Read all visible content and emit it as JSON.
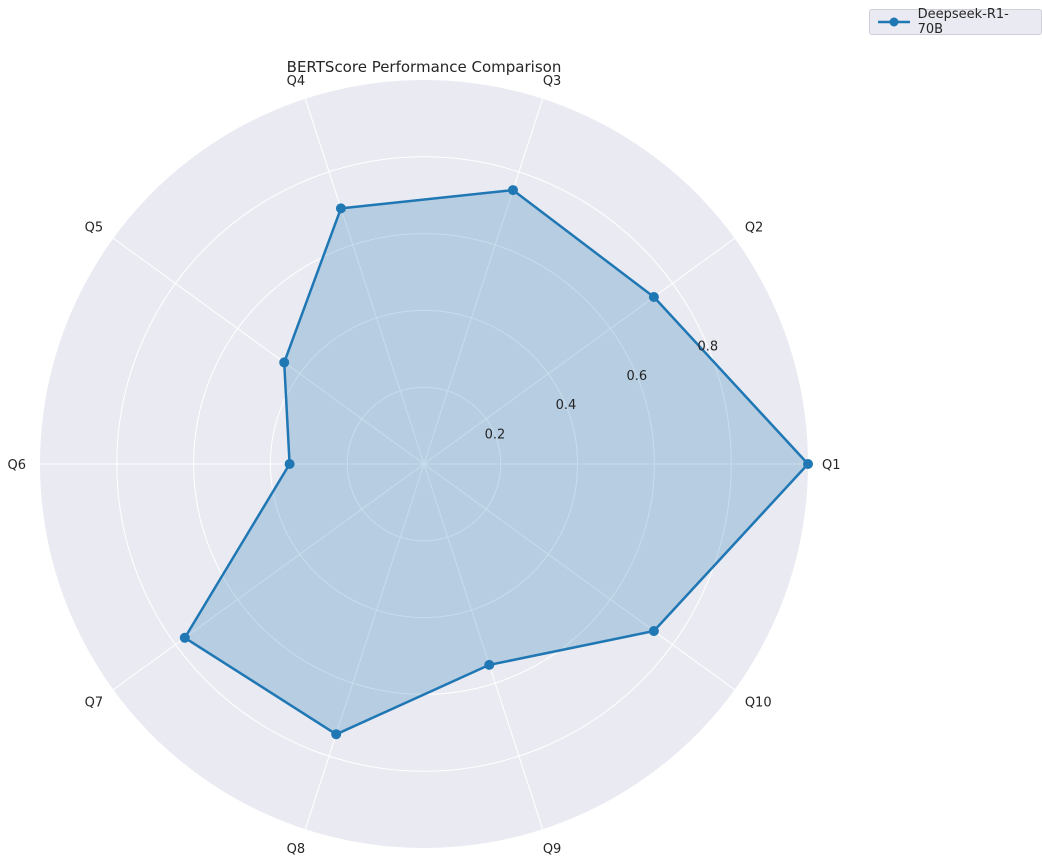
{
  "chart_data": {
    "type": "radar",
    "title": "BERTScore Performance Comparison",
    "categories": [
      "Q1",
      "Q2",
      "Q3",
      "Q4",
      "Q5",
      "Q6",
      "Q7",
      "Q8",
      "Q9",
      "Q10"
    ],
    "series": [
      {
        "name": "Deepseek-R1-70B",
        "values": [
          1.0,
          0.74,
          0.75,
          0.7,
          0.45,
          0.35,
          0.77,
          0.74,
          0.55,
          0.74
        ]
      }
    ],
    "rlim": [
      0,
      1.0
    ],
    "rticks": [
      0.2,
      0.4,
      0.6,
      0.8
    ],
    "grid": true,
    "legend": "top-right",
    "color": "#1f77b4",
    "background": "#eaeaf2"
  }
}
